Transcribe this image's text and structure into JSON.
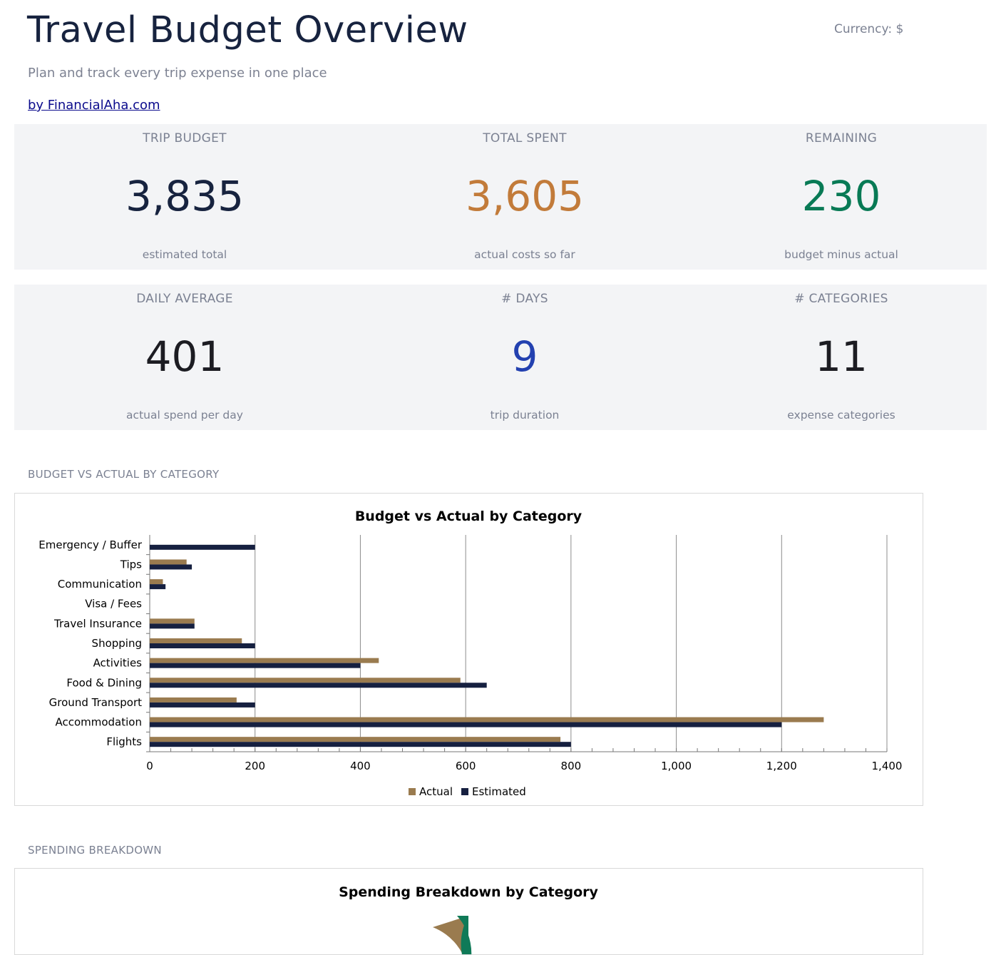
{
  "header": {
    "title": "Travel Budget Overview",
    "currency": "Currency: $",
    "subtitle": "Plan and track every trip expense in one place",
    "credit": "by FinancialAha.com"
  },
  "kpis_row1": [
    {
      "label": "TRIP BUDGET",
      "value": "3,835",
      "sub": "estimated total",
      "color": "#17233f"
    },
    {
      "label": "TOTAL SPENT",
      "value": "3,605",
      "sub": "actual costs so far",
      "color": "#c27b3a"
    },
    {
      "label": "REMAINING",
      "value": "230",
      "sub": "budget minus actual",
      "color": "#087a55"
    }
  ],
  "kpis_row2": [
    {
      "label": "DAILY AVERAGE",
      "value": "401",
      "sub": "actual spend per day",
      "color": "#1c1c22"
    },
    {
      "label": "# DAYS",
      "value": "9",
      "sub": "trip duration",
      "color": "#2341b0"
    },
    {
      "label": "# CATEGORIES",
      "value": "11",
      "sub": "expense categories",
      "color": "#1c1c22"
    }
  ],
  "sections": {
    "budget_vs_actual": "BUDGET VS ACTUAL BY CATEGORY",
    "spending_breakdown": "SPENDING BREAKDOWN"
  },
  "colors": {
    "actual": "#9a7b4f",
    "estimated": "#162040"
  },
  "chart_data": [
    {
      "type": "bar",
      "orientation": "horizontal",
      "title": "Budget vs Actual by Category",
      "categories": [
        "Flights",
        "Accommodation",
        "Ground Transport",
        "Food & Dining",
        "Activities",
        "Shopping",
        "Travel Insurance",
        "Visa / Fees",
        "Communication",
        "Tips",
        "Emergency / Buffer"
      ],
      "series": [
        {
          "name": "Actual",
          "values": [
            780,
            1280,
            165,
            590,
            435,
            175,
            85,
            0,
            25,
            70,
            0
          ]
        },
        {
          "name": "Estimated",
          "values": [
            800,
            1200,
            200,
            640,
            400,
            200,
            85,
            0,
            30,
            80,
            200
          ]
        }
      ],
      "xlim": [
        0,
        1400
      ],
      "xticks": [
        "0",
        "200",
        "400",
        "600",
        "800",
        "1,000",
        "1,200",
        "1,400"
      ],
      "grid": true,
      "legend": "bottom"
    },
    {
      "type": "pie",
      "title": "Spending Breakdown by Category"
    }
  ]
}
